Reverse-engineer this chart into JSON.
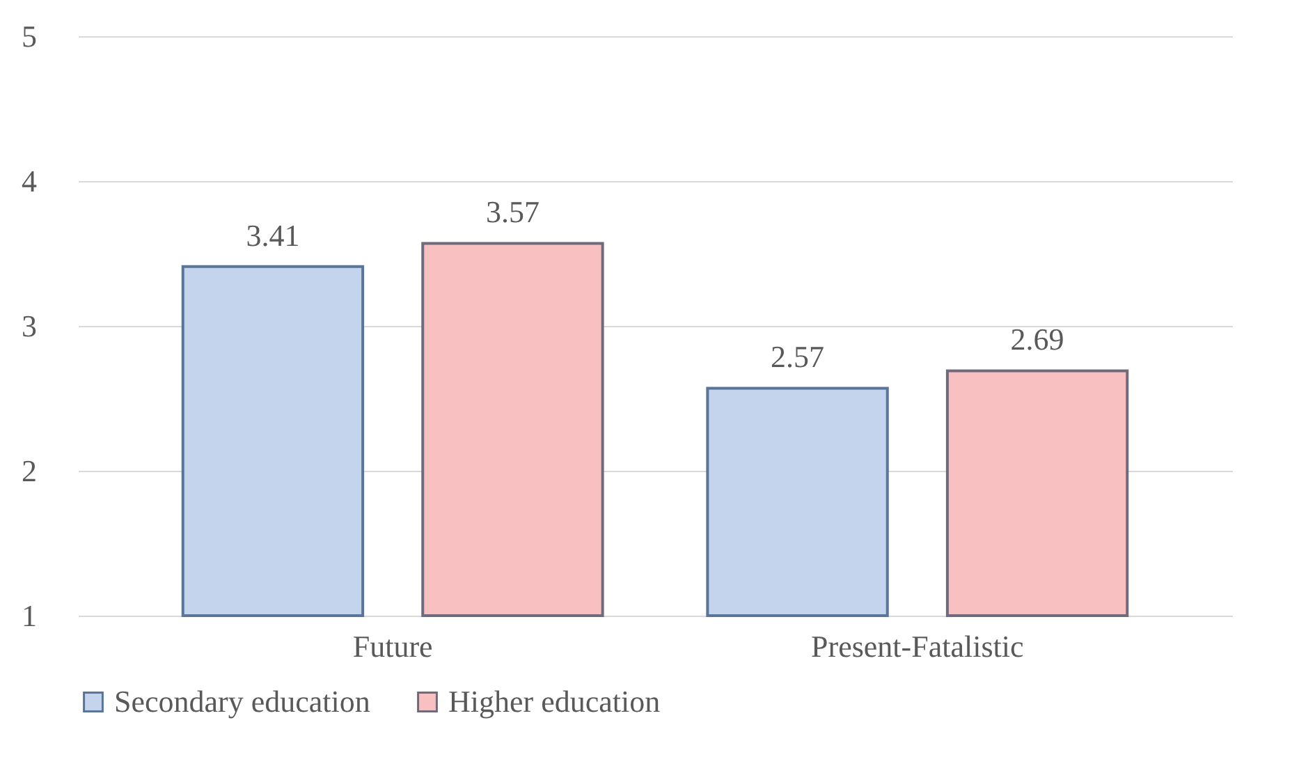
{
  "chart_data": {
    "type": "bar",
    "categories": [
      "Future",
      "Present-Fatalistic"
    ],
    "series": [
      {
        "name": "Secondary education",
        "color": "#c4d4ec",
        "values": [
          3.41,
          2.57
        ]
      },
      {
        "name": "Higher education",
        "color": "#f8c0c0",
        "values": [
          3.57,
          2.69
        ]
      }
    ],
    "ylim": [
      1,
      5
    ],
    "yticks": [
      1,
      2,
      3,
      4,
      5
    ],
    "grid": "y",
    "legend": "bottom",
    "data_labels": true
  }
}
